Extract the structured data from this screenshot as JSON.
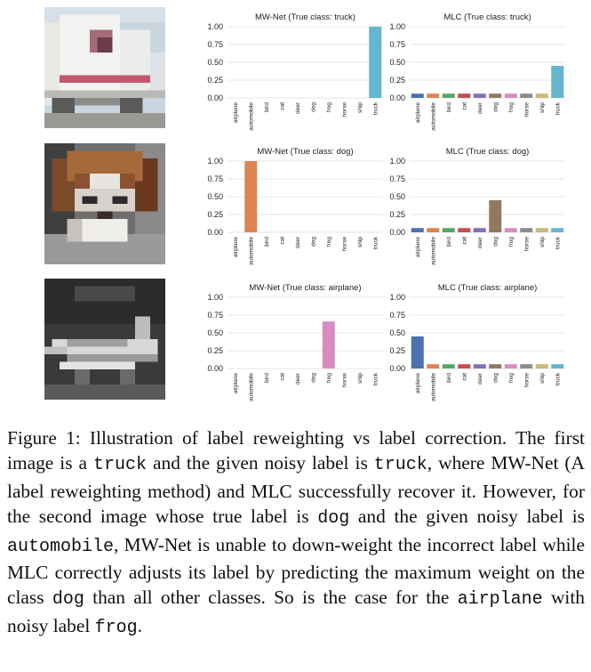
{
  "classes": [
    "airplane",
    "automobile",
    "bird",
    "cat",
    "deer",
    "dog",
    "frog",
    "horse",
    "ship",
    "truck"
  ],
  "palette": {
    "airplane": "#4c72b0",
    "automobile": "#dd8452",
    "bird": "#55a868",
    "cat": "#c44e52",
    "deer": "#8172b3",
    "dog": "#937860",
    "frog": "#da8bc3",
    "horse": "#8c8c8c",
    "ship": "#ccb974",
    "truck": "#64b5cd"
  },
  "chart_data": [
    {
      "type": "bar",
      "title": "MW-Net (True class: truck)",
      "categories": [
        "airplane",
        "automobile",
        "bird",
        "cat",
        "deer",
        "dog",
        "frog",
        "horse",
        "ship",
        "truck"
      ],
      "values": [
        0,
        0,
        0,
        0,
        0,
        0,
        0,
        0,
        0,
        1.0
      ],
      "ylim": [
        0,
        1.0
      ],
      "yticks": [
        "0.00",
        "0.25",
        "0.50",
        "0.75",
        "1.00"
      ]
    },
    {
      "type": "bar",
      "title": "MLC (True class: truck)",
      "categories": [
        "airplane",
        "automobile",
        "bird",
        "cat",
        "deer",
        "dog",
        "frog",
        "horse",
        "ship",
        "truck"
      ],
      "values": [
        0.06,
        0.06,
        0.06,
        0.06,
        0.06,
        0.06,
        0.06,
        0.06,
        0.06,
        0.45
      ],
      "ylim": [
        0,
        1.0
      ],
      "yticks": [
        "0.00",
        "0.25",
        "0.50",
        "0.75",
        "1.00"
      ]
    },
    {
      "type": "bar",
      "title": "MW-Net (True class: dog)",
      "categories": [
        "airplane",
        "automobile",
        "bird",
        "cat",
        "deer",
        "dog",
        "frog",
        "horse",
        "ship",
        "truck"
      ],
      "values": [
        0,
        1.0,
        0,
        0,
        0,
        0,
        0,
        0,
        0,
        0
      ],
      "ylim": [
        0,
        1.0
      ],
      "yticks": [
        "0.00",
        "0.25",
        "0.50",
        "0.75",
        "1.00"
      ]
    },
    {
      "type": "bar",
      "title": "MLC (True class: dog)",
      "categories": [
        "airplane",
        "automobile",
        "bird",
        "cat",
        "deer",
        "dog",
        "frog",
        "horse",
        "ship",
        "truck"
      ],
      "values": [
        0.06,
        0.06,
        0.06,
        0.06,
        0.06,
        0.45,
        0.06,
        0.06,
        0.06,
        0.06
      ],
      "ylim": [
        0,
        1.0
      ],
      "yticks": [
        "0.00",
        "0.25",
        "0.50",
        "0.75",
        "1.00"
      ]
    },
    {
      "type": "bar",
      "title": "MW-Net (True class: airplane)",
      "categories": [
        "airplane",
        "automobile",
        "bird",
        "cat",
        "deer",
        "dog",
        "frog",
        "horse",
        "ship",
        "truck"
      ],
      "values": [
        0,
        0,
        0,
        0,
        0,
        0,
        0.66,
        0,
        0,
        0
      ],
      "ylim": [
        0,
        1.0
      ],
      "yticks": [
        "0.00",
        "0.25",
        "0.50",
        "0.75",
        "1.00"
      ]
    },
    {
      "type": "bar",
      "title": "MLC (True class: airplane)",
      "categories": [
        "airplane",
        "automobile",
        "bird",
        "cat",
        "deer",
        "dog",
        "frog",
        "horse",
        "ship",
        "truck"
      ],
      "values": [
        0.45,
        0.06,
        0.06,
        0.06,
        0.06,
        0.06,
        0.06,
        0.06,
        0.06,
        0.06
      ],
      "ylim": [
        0,
        1.0
      ],
      "yticks": [
        "0.00",
        "0.25",
        "0.50",
        "0.75",
        "1.00"
      ]
    }
  ],
  "caption": {
    "p1": "Figure 1: Illustration of label reweighting vs label correction. The first image is a ",
    "c1": "truck",
    "p2": " and the given noisy label is ",
    "c2": "truck",
    "p3": ", where MW-Net (A label reweighting method) and MLC successfully recover it. However, for the second image whose true label is ",
    "c3": "dog",
    "p4": " and the given noisy label is ",
    "c4": "automobile",
    "p5": ", MW-Net is unable to down-weight the incorrect label while MLC correctly adjusts its label by predicting the maximum weight on the class ",
    "c5": "dog",
    "p6": " than all other classes. So is the case for the ",
    "c6": "airplane",
    "p7": " with noisy label ",
    "c7": "frog",
    "p8": "."
  }
}
